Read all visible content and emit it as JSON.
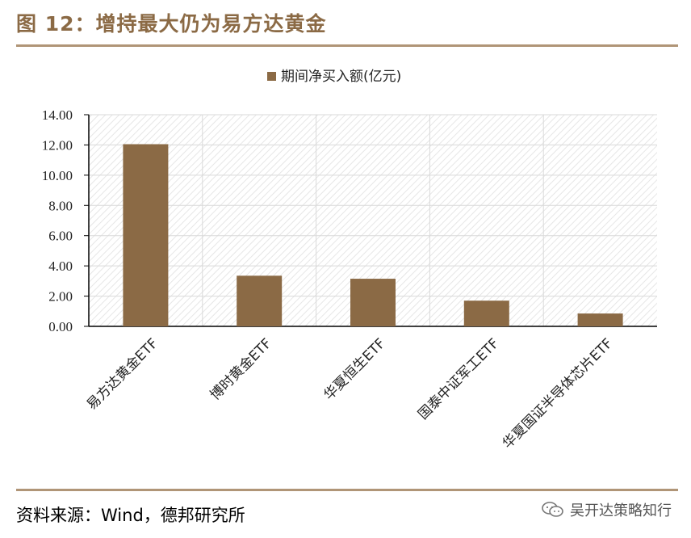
{
  "figure": {
    "title": "图 12：增持最大仍为易方达黄金",
    "source": "资料来源：Wind，德邦研究所",
    "watermark": "吴开达策略知行"
  },
  "colors": {
    "bar": "#8b6a45",
    "rule": "#b09577",
    "title": "#8b6a45",
    "grid": "#d9d9d9"
  },
  "chart_data": {
    "type": "bar",
    "categories": [
      "易方达黄金ETF",
      "博时黄金ETF",
      "华夏恒生ETF",
      "国泰中证军工ETF",
      "华夏国证半导体芯片ETF"
    ],
    "series": [
      {
        "name": "期间净买入额(亿元)",
        "values": [
          12.05,
          3.35,
          3.15,
          1.7,
          0.85
        ]
      }
    ],
    "ylim": [
      0,
      14
    ],
    "yticks": [
      "0.00",
      "2.00",
      "4.00",
      "6.00",
      "8.00",
      "10.00",
      "12.00",
      "14.00"
    ],
    "grid": true,
    "legend_position": "top-center"
  }
}
